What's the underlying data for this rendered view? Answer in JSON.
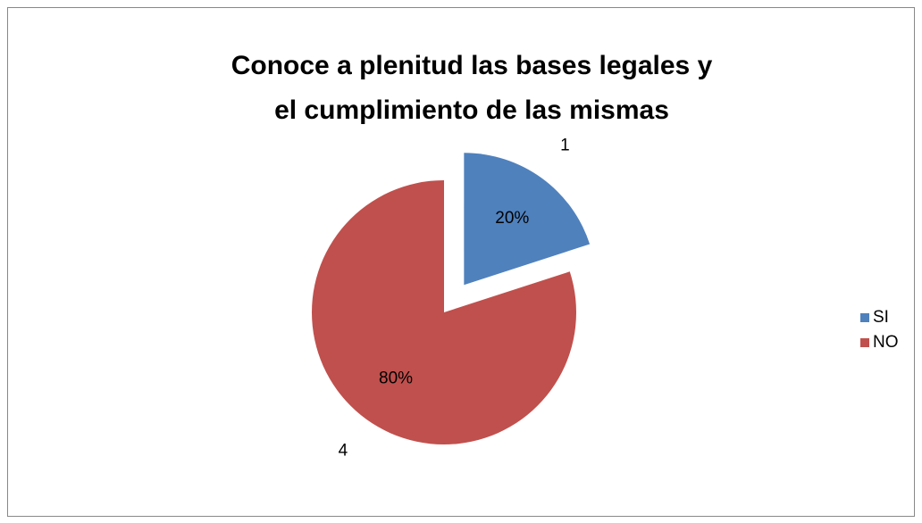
{
  "chart_data": {
    "type": "pie",
    "title": "Conoce a plenitud las bases legales y el cumplimiento de las mismas",
    "categories": [
      "SI",
      "NO"
    ],
    "values": [
      1,
      4
    ],
    "percent_labels": [
      "20%",
      "80%"
    ],
    "colors": [
      "#4f81bd",
      "#c0504d"
    ],
    "legend": "right"
  }
}
